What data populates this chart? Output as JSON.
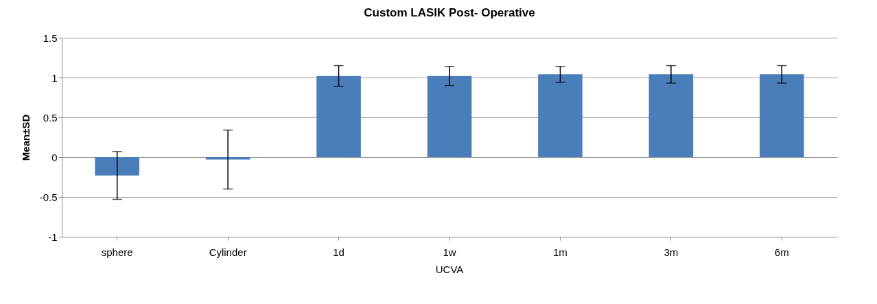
{
  "chart_data": {
    "type": "bar",
    "title": "Custom LASIK  Post- Operative",
    "ylabel": "Mean±SD",
    "categories": [
      "sphere",
      "Cylinder",
      "1d",
      "1w",
      "1m",
      "3m",
      "6m"
    ],
    "values": [
      -0.23,
      -0.03,
      1.02,
      1.02,
      1.04,
      1.04,
      1.04
    ],
    "errors": [
      0.3,
      0.37,
      0.13,
      0.12,
      0.1,
      0.11,
      0.11
    ],
    "color": "#4a7ebb",
    "ylim": [
      -1,
      1.5
    ],
    "yticks": [
      -1,
      -0.5,
      0,
      0.5,
      1,
      1.5
    ],
    "grid": "y",
    "annotations": [
      "UCVA"
    ]
  }
}
